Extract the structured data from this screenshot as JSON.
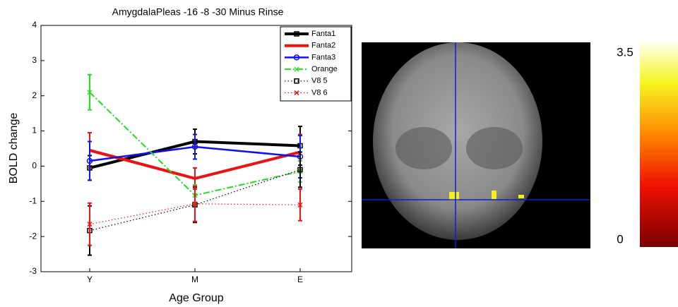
{
  "chart_data": {
    "type": "line",
    "title": "AmygdalaPleas -16 -8 -30 Minus Rinse",
    "x_label": "Age Group",
    "y_label": "BOLD change",
    "categories": [
      "Y",
      "M",
      "E"
    ],
    "ylim": [
      -3,
      4
    ],
    "yticks": [
      -3,
      -2,
      -1,
      0,
      1,
      2,
      3,
      4
    ],
    "legend": "upper right",
    "series": [
      {
        "name": "Fanta1",
        "color": "#000000",
        "linestyle": "solid",
        "marker": "square",
        "linewidth": 4,
        "values": [
          -0.05,
          0.7,
          0.58
        ],
        "errors": [
          0.35,
          0.35,
          0.55
        ]
      },
      {
        "name": "Fanta2",
        "color": "#ee1111",
        "linestyle": "solid",
        "marker": "none",
        "linewidth": 4,
        "values": [
          0.45,
          -0.35,
          0.4
        ],
        "errors": [
          0.5,
          0.3,
          0.5
        ]
      },
      {
        "name": "Fanta3",
        "color": "#1111ee",
        "linestyle": "solid",
        "marker": "circle",
        "linewidth": 2.5,
        "values": [
          0.15,
          0.55,
          0.27
        ],
        "errors": [
          0.55,
          0.35,
          0.6
        ]
      },
      {
        "name": "Orange",
        "color": "#22dd22",
        "linestyle": "dashdot",
        "marker": "x",
        "linewidth": 2,
        "values": [
          2.1,
          -0.83,
          -0.15
        ],
        "errors": [
          0.5,
          0.3,
          0.3
        ]
      },
      {
        "name": "V8 5",
        "color": "#000000",
        "linestyle": "dotted",
        "marker": "square",
        "linewidth": 1.2,
        "values": [
          -1.83,
          -1.1,
          -0.1
        ],
        "errors": [
          0.7,
          0.5,
          0.5
        ]
      },
      {
        "name": "V8 6",
        "color": "#ee1111",
        "linestyle": "dotted",
        "marker": "x",
        "linewidth": 1.2,
        "values": [
          -1.65,
          -1.07,
          -1.1
        ],
        "errors": [
          0.6,
          0.5,
          0.45
        ]
      }
    ]
  },
  "colorbar": {
    "range": [
      0,
      3.5
    ]
  }
}
